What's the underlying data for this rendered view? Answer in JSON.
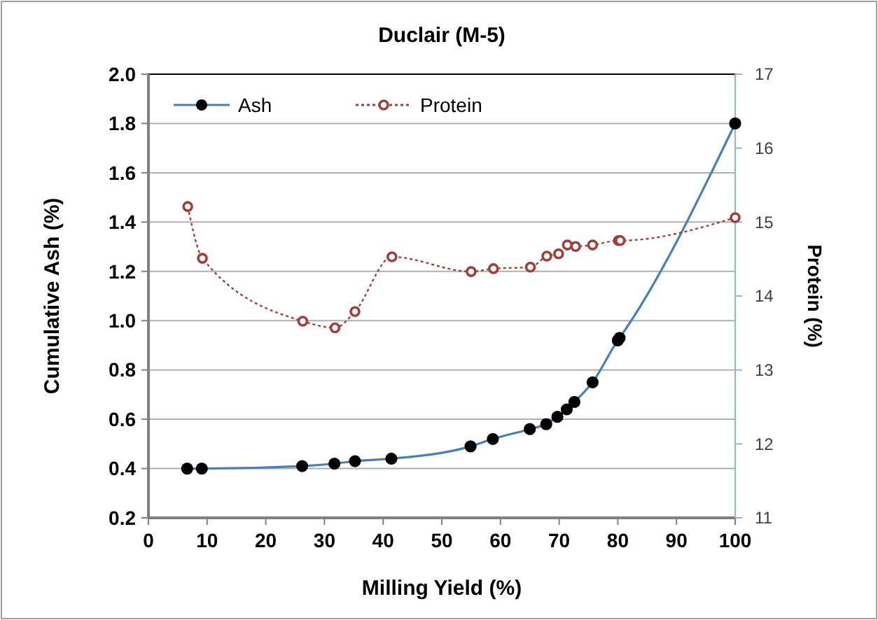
{
  "chart_data": {
    "type": "line",
    "title": "Duclair (M-5)",
    "xlabel": "Milling Yield (%)",
    "ylabel": "Cumulative Ash (%)",
    "y2label": "Protein (%)",
    "xlim": [
      0,
      100
    ],
    "xticks": [
      0,
      10,
      20,
      30,
      40,
      50,
      60,
      70,
      80,
      90,
      100
    ],
    "ylim": [
      0.2,
      2.0
    ],
    "yticks": [
      {
        "value": 0.2,
        "label": "0.2"
      },
      {
        "value": 0.4,
        "label": "0.4"
      },
      {
        "value": 0.6,
        "label": "0.6"
      },
      {
        "value": 0.8,
        "label": "0.8"
      },
      {
        "value": 1.0,
        "label": "1.0"
      },
      {
        "value": 1.2,
        "label": "1.2"
      },
      {
        "value": 1.4,
        "label": "1.4"
      },
      {
        "value": 1.6,
        "label": "1.6"
      },
      {
        "value": 1.8,
        "label": "1.8"
      },
      {
        "value": 2.0,
        "label": "2.0"
      }
    ],
    "y2lim": [
      11,
      17
    ],
    "y2ticks": [
      11,
      12,
      13,
      14,
      15,
      16,
      17
    ],
    "grid": "y",
    "legend": "top left",
    "series": [
      {
        "name": "Ash",
        "color": "#4a7ebb",
        "marker": "circle",
        "line_style": "solid",
        "x": [
          6.6,
          9.1,
          26.2,
          31.7,
          35.2,
          41.4,
          54.9,
          58.7,
          65.0,
          67.8,
          69.7,
          71.3,
          72.6,
          75.7,
          80.0,
          80.3,
          100
        ],
        "values": [
          0.4,
          0.4,
          0.41,
          0.42,
          0.43,
          0.44,
          0.49,
          0.52,
          0.56,
          0.58,
          0.61,
          0.64,
          0.67,
          0.75,
          0.92,
          0.93,
          1.8
        ]
      },
      {
        "name": "Protein",
        "color": "#a0403c",
        "marker": "circle",
        "line_style": "dotted",
        "axis": "y2",
        "x": [
          6.7,
          9.2,
          26.3,
          31.8,
          35.2,
          41.5,
          55.0,
          58.8,
          65.1,
          67.9,
          69.9,
          71.4,
          72.8,
          75.7,
          80.1,
          80.4,
          100
        ],
        "values": [
          15.21,
          14.51,
          13.66,
          13.57,
          13.79,
          14.53,
          14.33,
          14.37,
          14.39,
          14.54,
          14.57,
          14.69,
          14.67,
          14.69,
          14.75,
          14.75,
          15.06
        ]
      }
    ]
  }
}
